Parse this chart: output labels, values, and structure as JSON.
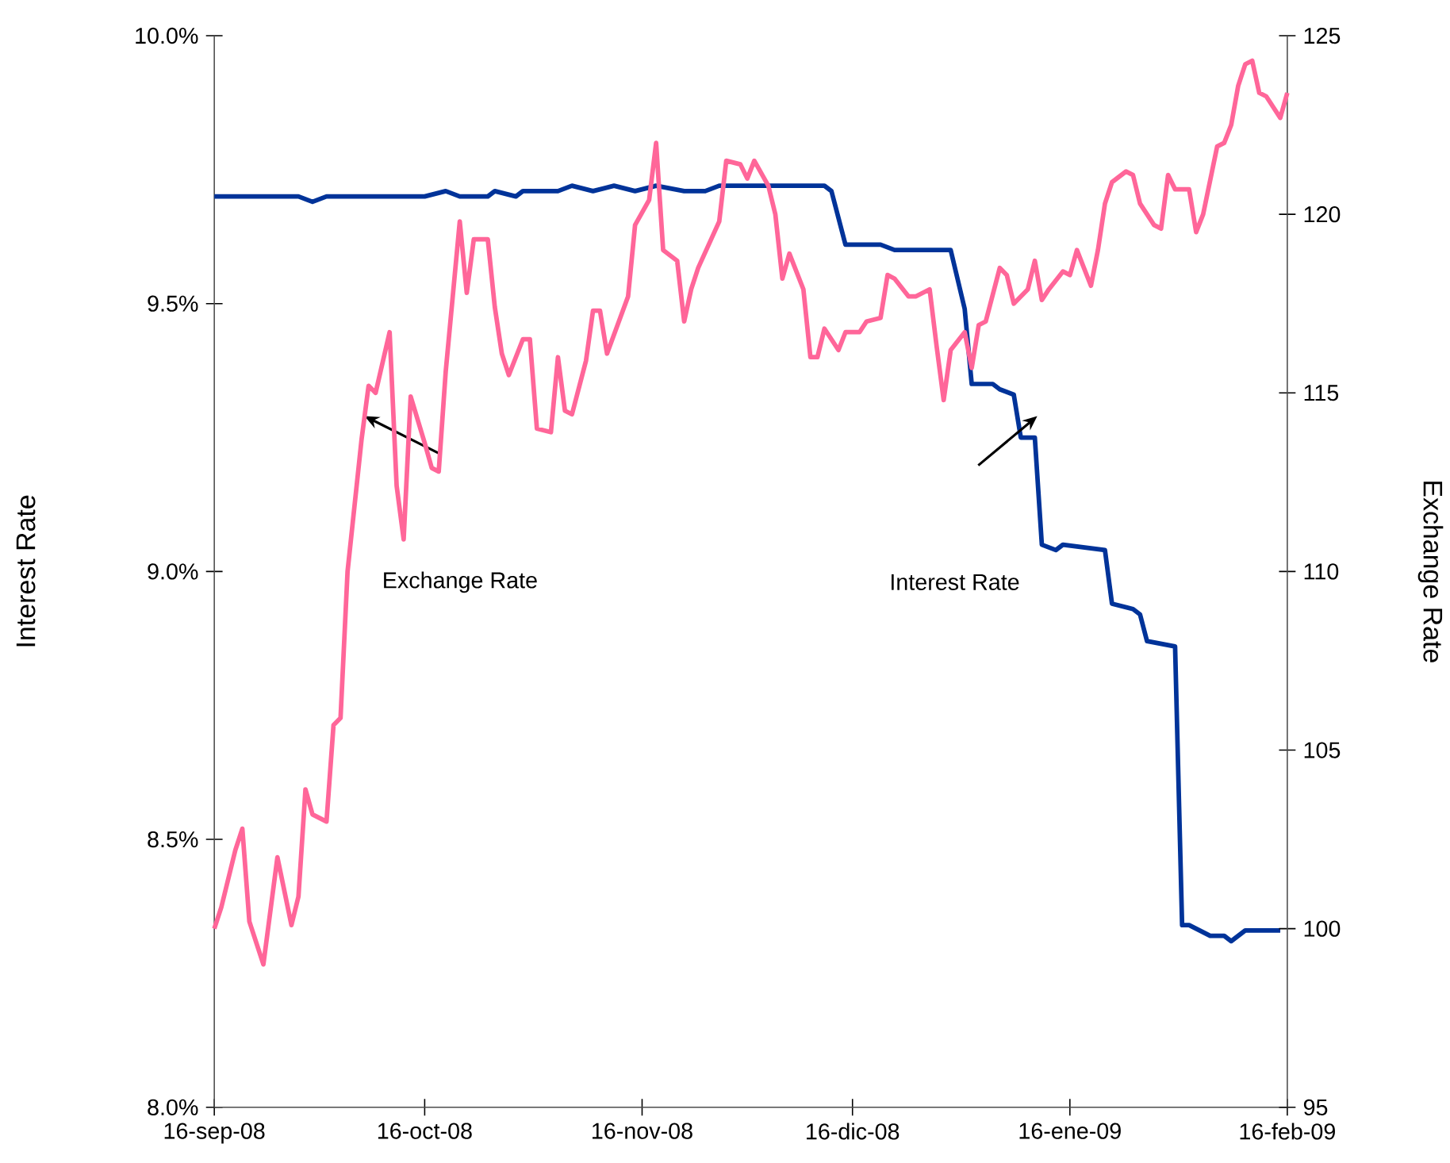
{
  "chart_data": {
    "type": "line",
    "ylabel": "Interest Rate",
    "y2label": "Exchange Rate",
    "xlim": [
      "2008-09-16",
      "2009-02-16"
    ],
    "xticks": [
      {
        "value": "2008-09-16",
        "label": "16-sep-08"
      },
      {
        "value": "2008-10-16",
        "label": "16-oct-08"
      },
      {
        "value": "2008-11-16",
        "label": "16-nov-08"
      },
      {
        "value": "2008-12-16",
        "label": "16-dic-08"
      },
      {
        "value": "2009-01-16",
        "label": "16-ene-09"
      },
      {
        "value": "2009-02-16",
        "label": "16-feb-09"
      }
    ],
    "ylim": [
      8.0,
      10.0
    ],
    "yticks": [
      {
        "value": 8.0,
        "label": "8.0%"
      },
      {
        "value": 8.5,
        "label": "8.5%"
      },
      {
        "value": 9.0,
        "label": "9.0%"
      },
      {
        "value": 9.5,
        "label": "9.5%"
      },
      {
        "value": 10.0,
        "label": "10.0%"
      }
    ],
    "y2lim": [
      95,
      125
    ],
    "y2ticks": [
      95,
      100,
      105,
      110,
      115,
      120,
      125
    ],
    "grid": false,
    "marker": "none",
    "line_style": "solid",
    "annotations": [
      "Exchange Rate",
      "Interest Rate"
    ],
    "series": [
      {
        "color": "#003399",
        "x": [
          "2008-09-16",
          "2008-09-18",
          "2008-09-21",
          "2008-09-28",
          "2008-09-30",
          "2008-10-02",
          "2008-10-16",
          "2008-10-19",
          "2008-10-21",
          "2008-10-25",
          "2008-10-26",
          "2008-10-29",
          "2008-10-30",
          "2008-11-01",
          "2008-11-04",
          "2008-11-06",
          "2008-11-09",
          "2008-11-12",
          "2008-11-15",
          "2008-11-18",
          "2008-11-22",
          "2008-11-25",
          "2008-11-27",
          "2008-11-30",
          "2008-12-02",
          "2008-12-04",
          "2008-12-12",
          "2008-12-13",
          "2008-12-15",
          "2008-12-16",
          "2008-12-18",
          "2008-12-20",
          "2008-12-22",
          "2008-12-30",
          "2009-01-01",
          "2009-01-02",
          "2009-01-05",
          "2009-01-06",
          "2009-01-08",
          "2009-01-09",
          "2009-01-11",
          "2009-01-12",
          "2009-01-14",
          "2009-01-15",
          "2009-01-21",
          "2009-01-22",
          "2009-01-25",
          "2009-01-26",
          "2009-01-27",
          "2009-01-31",
          "2009-02-01",
          "2009-02-02",
          "2009-02-05",
          "2009-02-07",
          "2009-02-08",
          "2009-02-10",
          "2009-02-15"
        ],
        "values": [
          9.7,
          9.7,
          9.7,
          9.7,
          9.69,
          9.7,
          9.7,
          9.71,
          9.7,
          9.7,
          9.71,
          9.7,
          9.71,
          9.71,
          9.71,
          9.72,
          9.71,
          9.72,
          9.71,
          9.72,
          9.71,
          9.71,
          9.72,
          9.72,
          9.72,
          9.72,
          9.72,
          9.71,
          9.61,
          9.61,
          9.61,
          9.61,
          9.6,
          9.6,
          9.49,
          9.35,
          9.35,
          9.34,
          9.33,
          9.25,
          9.25,
          9.05,
          9.04,
          9.05,
          9.04,
          8.94,
          8.93,
          8.92,
          8.87,
          8.86,
          8.34,
          8.34,
          8.32,
          8.32,
          8.31,
          8.33,
          8.33
        ]
      },
      {
        "color": "#ff6699",
        "axis": "y2",
        "x": [
          "2008-09-16",
          "2008-09-17",
          "2008-09-19",
          "2008-09-20",
          "2008-09-21",
          "2008-09-23",
          "2008-09-25",
          "2008-09-27",
          "2008-09-28",
          "2008-09-29",
          "2008-09-30",
          "2008-10-02",
          "2008-10-03",
          "2008-10-04",
          "2008-10-05",
          "2008-10-07",
          "2008-10-08",
          "2008-10-09",
          "2008-10-11",
          "2008-10-12",
          "2008-10-13",
          "2008-10-14",
          "2008-10-16",
          "2008-10-17",
          "2008-10-18",
          "2008-10-19",
          "2008-10-21",
          "2008-10-22",
          "2008-10-23",
          "2008-10-25",
          "2008-10-26",
          "2008-10-27",
          "2008-10-28",
          "2008-10-30",
          "2008-10-31",
          "2008-11-01",
          "2008-11-03",
          "2008-11-04",
          "2008-11-05",
          "2008-11-06",
          "2008-11-08",
          "2008-11-09",
          "2008-11-10",
          "2008-11-11",
          "2008-11-14",
          "2008-11-15",
          "2008-11-17",
          "2008-11-18",
          "2008-11-19",
          "2008-11-21",
          "2008-11-22",
          "2008-11-23",
          "2008-11-24",
          "2008-11-27",
          "2008-11-28",
          "2008-11-30",
          "2008-12-01",
          "2008-12-02",
          "2008-12-04",
          "2008-12-05",
          "2008-12-06",
          "2008-12-07",
          "2008-12-09",
          "2008-12-10",
          "2008-12-11",
          "2008-12-12",
          "2008-12-14",
          "2008-12-15",
          "2008-12-17",
          "2008-12-18",
          "2008-12-20",
          "2008-12-21",
          "2008-12-22",
          "2008-12-24",
          "2008-12-25",
          "2008-12-27",
          "2008-12-28",
          "2008-12-29",
          "2008-12-30",
          "2009-01-01",
          "2009-01-02",
          "2009-01-03",
          "2009-01-04",
          "2009-01-06",
          "2009-01-07",
          "2009-01-08",
          "2009-01-10",
          "2009-01-11",
          "2009-01-12",
          "2009-01-13",
          "2009-01-15",
          "2009-01-16",
          "2009-01-17",
          "2009-01-19",
          "2009-01-20",
          "2009-01-21",
          "2009-01-22",
          "2009-01-24",
          "2009-01-25",
          "2009-01-26",
          "2009-01-28",
          "2009-01-29",
          "2009-01-30",
          "2009-01-31",
          "2009-02-02",
          "2009-02-03",
          "2009-02-04",
          "2009-02-06",
          "2009-02-07",
          "2009-02-08",
          "2009-02-09",
          "2009-02-10",
          "2009-02-11",
          "2009-02-12",
          "2009-02-13",
          "2009-02-15",
          "2009-02-16"
        ],
        "values": [
          100.0,
          100.6,
          102.2,
          102.8,
          100.2,
          99.0,
          102.0,
          100.1,
          100.9,
          103.9,
          103.2,
          103.0,
          105.7,
          105.9,
          110.0,
          113.7,
          115.2,
          115.0,
          116.7,
          112.4,
          110.9,
          114.9,
          113.6,
          112.9,
          112.8,
          115.6,
          119.8,
          117.8,
          119.3,
          119.3,
          117.4,
          116.1,
          115.5,
          116.5,
          116.5,
          114.0,
          113.9,
          116.0,
          114.5,
          114.4,
          115.9,
          117.3,
          117.3,
          116.1,
          117.7,
          119.7,
          120.4,
          122.0,
          119.0,
          118.7,
          117.0,
          117.9,
          118.5,
          119.8,
          121.5,
          121.4,
          121.0,
          121.5,
          120.8,
          120.0,
          118.2,
          118.9,
          117.9,
          116.0,
          116.0,
          116.8,
          116.2,
          116.7,
          116.7,
          117.0,
          117.1,
          118.3,
          118.2,
          117.7,
          117.7,
          117.9,
          116.3,
          114.8,
          116.2,
          116.7,
          115.7,
          116.9,
          117.0,
          118.5,
          118.3,
          117.5,
          117.9,
          118.7,
          117.6,
          117.9,
          118.4,
          118.3,
          119.0,
          118.0,
          119.0,
          120.3,
          120.9,
          121.2,
          121.1,
          120.3,
          119.7,
          119.6,
          121.1,
          120.7,
          120.7,
          119.5,
          120.0,
          121.9,
          122.0,
          122.5,
          123.6,
          124.2,
          124.3,
          123.4,
          123.3,
          122.7,
          123.4
        ]
      }
    ]
  }
}
